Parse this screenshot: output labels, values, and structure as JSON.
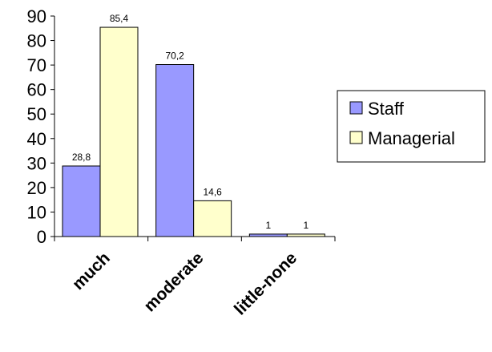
{
  "chart_data": {
    "type": "bar",
    "categories": [
      "much",
      "moderate",
      "little-none"
    ],
    "series": [
      {
        "name": "Staff",
        "values": [
          28.8,
          70.2,
          1
        ],
        "labels": [
          "28,8",
          "70,2",
          "1"
        ],
        "color": "#9999ff"
      },
      {
        "name": "Managerial",
        "values": [
          85.4,
          14.6,
          1
        ],
        "labels": [
          "85,4",
          "14,6",
          "1"
        ],
        "color": "#ffffcc"
      }
    ],
    "yticks": [
      0,
      10,
      20,
      30,
      40,
      50,
      60,
      70,
      80,
      90
    ],
    "ylim": [
      0,
      90
    ],
    "title": "",
    "xlabel": "",
    "ylabel": "",
    "grid": false,
    "legend_position": "right"
  }
}
